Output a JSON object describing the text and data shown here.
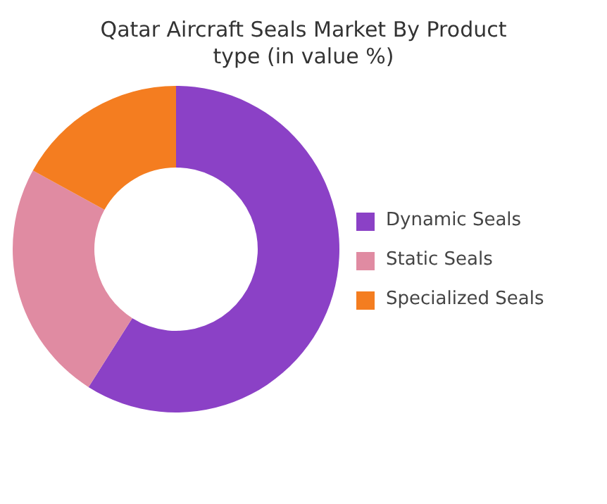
{
  "chart_data": {
    "type": "donut",
    "title": "Qatar Aircraft Seals Market By Product type (in value %)",
    "categories": [
      "Dynamic Seals",
      "Static Seals",
      "Specialized Seals"
    ],
    "values": [
      59,
      24,
      17
    ],
    "colors": [
      "#8b41c6",
      "#e08ba2",
      "#f47d20"
    ],
    "legend": "right"
  }
}
